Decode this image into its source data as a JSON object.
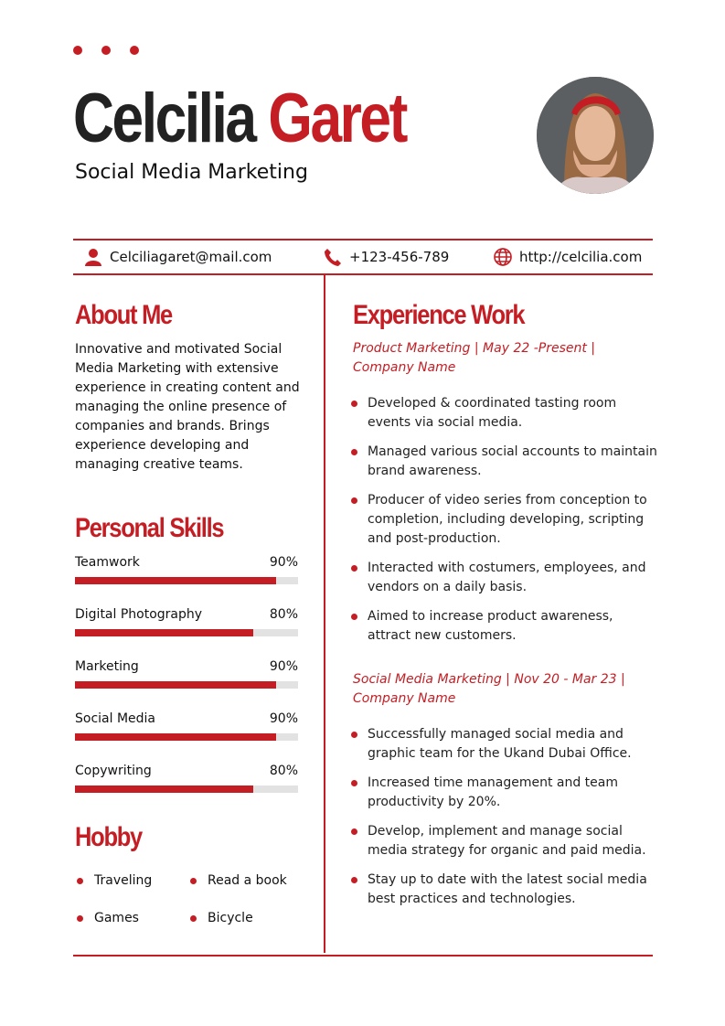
{
  "header": {
    "first_name": "Celcilia",
    "last_name": "Garet",
    "title": "Social Media Marketing"
  },
  "contact": {
    "email": "Celciliagaret@mail.com",
    "phone": "+123-456-789",
    "website": "http://celcilia.com"
  },
  "about": {
    "heading": "About Me",
    "text": "Innovative and motivated Social Media Marketing with extensive experience in creating content and managing the online presence of companies and brands. Brings experience developing and managing creative teams."
  },
  "skills": {
    "heading": "Personal Skills",
    "items": [
      {
        "label": "Teamwork",
        "value": "90%",
        "pct": 90
      },
      {
        "label": "Digital Photography",
        "value": "80%",
        "pct": 80
      },
      {
        "label": "Marketing",
        "value": "90%",
        "pct": 90
      },
      {
        "label": "Social Media",
        "value": "90%",
        "pct": 90
      },
      {
        "label": "Copywriting",
        "value": "80%",
        "pct": 80
      }
    ]
  },
  "hobby": {
    "heading": "Hobby",
    "items": [
      "Traveling",
      "Read a book",
      "Games",
      "Bicycle"
    ]
  },
  "experience": {
    "heading": "Experience Work",
    "jobs": [
      {
        "title": "Product Marketing | May 22 -Present | Company Name",
        "bullets": [
          "Developed & coordinated tasting room events via social media.",
          "Managed various social accounts to maintain brand awareness.",
          "Producer of video series from conception to completion, including developing, scripting and post-production.",
          "Interacted with costumers, employees, and vendors on a daily basis.",
          "Aimed to increase product awareness, attract new customers."
        ]
      },
      {
        "title": "Social Media Marketing | Nov 20 - Mar 23 | Company Name",
        "bullets": [
          "Successfully managed social media and graphic team for the Ukand Dubai Office.",
          "Increased time management and team productivity by 20%.",
          "Develop, implement and manage social media strategy for organic and paid media.",
          "Stay up to date with the latest social media best practices and technologies."
        ]
      }
    ]
  },
  "colors": {
    "accent": "#c41e24"
  }
}
